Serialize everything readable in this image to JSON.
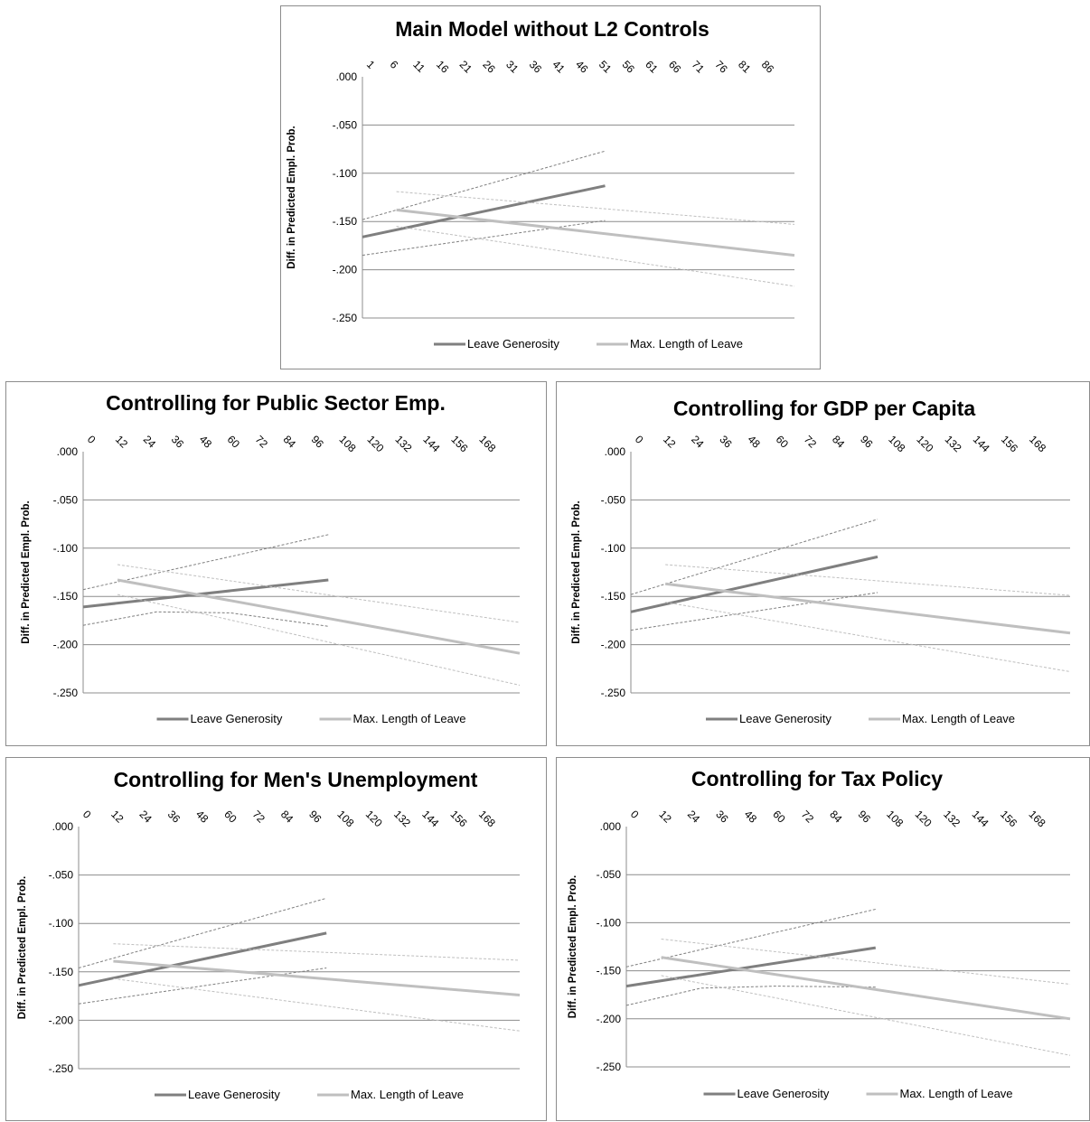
{
  "chart_data": [
    {
      "type": "line",
      "title": "Main Model without L2 Controls",
      "ylabel": "Diff. in Predicted Empl. Prob.",
      "xlabel": "",
      "x_axis_position": "top",
      "x_tick_labels": [
        "1",
        "6",
        "11",
        "16",
        "21",
        "26",
        "31",
        "36",
        "41",
        "46",
        "51",
        "56",
        "61",
        "66",
        "71",
        "76",
        "81",
        "86"
      ],
      "xlim": [
        1,
        90
      ],
      "y_tick_labels": [
        ".000",
        "-.050",
        "-.100",
        "-.150",
        "-.200",
        "-.250"
      ],
      "ylim": [
        -0.25,
        0
      ],
      "grid": true,
      "legend": "bottom",
      "series": [
        {
          "name": "Leave Generosity",
          "color": "#7f7f7f",
          "style": "solid",
          "x": [
            1,
            51
          ],
          "y": [
            -0.166,
            -0.113
          ]
        },
        {
          "name": "",
          "color": "#7f7f7f",
          "style": "dashed",
          "x": [
            1,
            51
          ],
          "y": [
            -0.148,
            -0.077
          ]
        },
        {
          "name": "",
          "color": "#7f7f7f",
          "style": "dashed",
          "x": [
            1,
            51
          ],
          "y": [
            -0.185,
            -0.149
          ]
        },
        {
          "name": "Max. Length of Leave",
          "color": "#bfbfbf",
          "style": "solid",
          "x": [
            8,
            90
          ],
          "y": [
            -0.138,
            -0.185
          ]
        },
        {
          "name": "",
          "color": "#bfbfbf",
          "style": "dashed",
          "x": [
            8,
            90
          ],
          "y": [
            -0.119,
            -0.153
          ]
        },
        {
          "name": "",
          "color": "#bfbfbf",
          "style": "dashed",
          "x": [
            8,
            90
          ],
          "y": [
            -0.155,
            -0.217
          ]
        }
      ]
    },
    {
      "type": "line",
      "title": "Controlling for Public Sector Emp.",
      "ylabel": "Diff. in Predicted Empl. Prob.",
      "xlabel": "",
      "x_axis_position": "top",
      "x_tick_labels": [
        "0",
        "12",
        "24",
        "36",
        "48",
        "60",
        "72",
        "84",
        "96",
        "108",
        "120",
        "132",
        "144",
        "156",
        "168"
      ],
      "xlim": [
        0,
        178
      ],
      "y_tick_labels": [
        ".000",
        "-.050",
        "-.100",
        "-.150",
        "-.200",
        "-.250"
      ],
      "ylim": [
        -0.25,
        0
      ],
      "grid": true,
      "legend": "bottom",
      "series": [
        {
          "name": "Leave Generosity",
          "color": "#7f7f7f",
          "style": "solid",
          "x": [
            0,
            100
          ],
          "y": [
            -0.161,
            -0.133
          ]
        },
        {
          "name": "",
          "color": "#7f7f7f",
          "style": "dashed",
          "x": [
            0,
            100
          ],
          "y": [
            -0.143,
            -0.086
          ]
        },
        {
          "name": "",
          "color": "#7f7f7f",
          "style": "dashed",
          "x": [
            0,
            30,
            60,
            100
          ],
          "y": [
            -0.18,
            -0.166,
            -0.167,
            -0.181
          ]
        },
        {
          "name": "Max. Length of Leave",
          "color": "#bfbfbf",
          "style": "solid",
          "x": [
            14,
            178
          ],
          "y": [
            -0.133,
            -0.209
          ]
        },
        {
          "name": "",
          "color": "#bfbfbf",
          "style": "dashed",
          "x": [
            14,
            178
          ],
          "y": [
            -0.117,
            -0.177
          ]
        },
        {
          "name": "",
          "color": "#bfbfbf",
          "style": "dashed",
          "x": [
            14,
            178
          ],
          "y": [
            -0.148,
            -0.242
          ]
        }
      ]
    },
    {
      "type": "line",
      "title": "Controlling for GDP per Capita",
      "ylabel": "Diff. in Predicted Empl. Prob.",
      "xlabel": "",
      "x_axis_position": "top",
      "x_tick_labels": [
        "0",
        "12",
        "24",
        "36",
        "48",
        "60",
        "72",
        "84",
        "96",
        "108",
        "120",
        "132",
        "144",
        "156",
        "168"
      ],
      "xlim": [
        0,
        178
      ],
      "y_tick_labels": [
        ".000",
        "-.050",
        "-.100",
        "-.150",
        "-.200",
        "-.250"
      ],
      "ylim": [
        -0.25,
        0
      ],
      "grid": true,
      "legend": "bottom",
      "series": [
        {
          "name": "Leave Generosity",
          "color": "#7f7f7f",
          "style": "solid",
          "x": [
            0,
            100
          ],
          "y": [
            -0.166,
            -0.109
          ]
        },
        {
          "name": "",
          "color": "#7f7f7f",
          "style": "dashed",
          "x": [
            0,
            100
          ],
          "y": [
            -0.148,
            -0.07
          ]
        },
        {
          "name": "",
          "color": "#7f7f7f",
          "style": "dashed",
          "x": [
            0,
            100
          ],
          "y": [
            -0.185,
            -0.146
          ]
        },
        {
          "name": "Max. Length of Leave",
          "color": "#bfbfbf",
          "style": "solid",
          "x": [
            14,
            178
          ],
          "y": [
            -0.137,
            -0.188
          ]
        },
        {
          "name": "",
          "color": "#bfbfbf",
          "style": "dashed",
          "x": [
            14,
            178
          ],
          "y": [
            -0.117,
            -0.149
          ]
        },
        {
          "name": "",
          "color": "#bfbfbf",
          "style": "dashed",
          "x": [
            14,
            178
          ],
          "y": [
            -0.156,
            -0.228
          ]
        }
      ]
    },
    {
      "type": "line",
      "title": "Controlling for Men's Unemployment",
      "ylabel": "Diff. in Predicted Empl. Prob.",
      "xlabel": "",
      "x_axis_position": "top",
      "x_tick_labels": [
        "0",
        "12",
        "24",
        "36",
        "48",
        "60",
        "72",
        "84",
        "96",
        "108",
        "120",
        "132",
        "144",
        "156",
        "168"
      ],
      "xlim": [
        0,
        178
      ],
      "y_tick_labels": [
        ".000",
        "-.050",
        "-.100",
        "-.150",
        "-.200",
        "-.250"
      ],
      "ylim": [
        -0.25,
        0
      ],
      "grid": true,
      "legend": "bottom",
      "series": [
        {
          "name": "Leave Generosity",
          "color": "#7f7f7f",
          "style": "solid",
          "x": [
            0,
            100
          ],
          "y": [
            -0.164,
            -0.11
          ]
        },
        {
          "name": "",
          "color": "#7f7f7f",
          "style": "dashed",
          "x": [
            0,
            100
          ],
          "y": [
            -0.146,
            -0.074
          ]
        },
        {
          "name": "",
          "color": "#7f7f7f",
          "style": "dashed",
          "x": [
            0,
            100
          ],
          "y": [
            -0.183,
            -0.146
          ]
        },
        {
          "name": "Max. Length of Leave",
          "color": "#bfbfbf",
          "style": "solid",
          "x": [
            14,
            178
          ],
          "y": [
            -0.139,
            -0.174
          ]
        },
        {
          "name": "",
          "color": "#bfbfbf",
          "style": "dashed",
          "x": [
            14,
            178
          ],
          "y": [
            -0.121,
            -0.138
          ]
        },
        {
          "name": "",
          "color": "#bfbfbf",
          "style": "dashed",
          "x": [
            14,
            178
          ],
          "y": [
            -0.157,
            -0.211
          ]
        }
      ]
    },
    {
      "type": "line",
      "title": "Controlling for Tax Policy",
      "ylabel": "Diff. in Predicted Empl. Prob.",
      "xlabel": "",
      "x_axis_position": "top",
      "x_tick_labels": [
        "0",
        "12",
        "24",
        "36",
        "48",
        "60",
        "72",
        "84",
        "96",
        "108",
        "120",
        "132",
        "144",
        "156",
        "168"
      ],
      "xlim": [
        0,
        178
      ],
      "y_tick_labels": [
        ".000",
        "-.050",
        "-.100",
        "-.150",
        "-.200",
        "-.250"
      ],
      "ylim": [
        -0.25,
        0
      ],
      "grid": true,
      "legend": "bottom",
      "series": [
        {
          "name": "Leave Generosity",
          "color": "#7f7f7f",
          "style": "solid",
          "x": [
            0,
            100
          ],
          "y": [
            -0.166,
            -0.126
          ]
        },
        {
          "name": "",
          "color": "#7f7f7f",
          "style": "dashed",
          "x": [
            0,
            100
          ],
          "y": [
            -0.146,
            -0.086
          ]
        },
        {
          "name": "",
          "color": "#7f7f7f",
          "style": "dashed",
          "x": [
            0,
            30,
            60,
            100
          ],
          "y": [
            -0.186,
            -0.168,
            -0.166,
            -0.167
          ]
        },
        {
          "name": "Max. Length of Leave",
          "color": "#bfbfbf",
          "style": "solid",
          "x": [
            14,
            178
          ],
          "y": [
            -0.136,
            -0.2
          ]
        },
        {
          "name": "",
          "color": "#bfbfbf",
          "style": "dashed",
          "x": [
            14,
            178
          ],
          "y": [
            -0.117,
            -0.164
          ]
        },
        {
          "name": "",
          "color": "#bfbfbf",
          "style": "dashed",
          "x": [
            14,
            178
          ],
          "y": [
            -0.155,
            -0.238
          ]
        }
      ]
    }
  ]
}
